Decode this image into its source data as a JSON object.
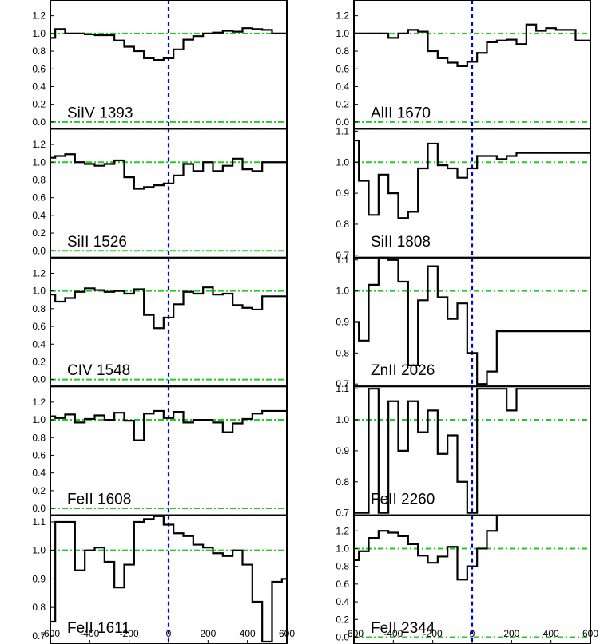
{
  "figure": {
    "background": "#ffffff",
    "colors": {
      "spectrum": "#000000",
      "continuum": "#22cc22",
      "systemic": "#0000dd"
    }
  },
  "chart_data": [
    {
      "type": "line",
      "label": "SiIV 1393",
      "column": 0,
      "row": 0,
      "xlim": [
        -600,
        600
      ],
      "ylim": [
        -0.05,
        1.35
      ],
      "yticks": [
        0.0,
        0.2,
        0.4,
        0.6,
        0.8,
        1.0,
        1.2
      ],
      "ytick_labels": [
        "0.0",
        "0.2",
        "0.4",
        "0.6",
        "0.8",
        "1.0",
        "1.2"
      ],
      "continuum": [
        1.0,
        0.0
      ],
      "zero_line": 0,
      "x": [
        -600,
        -550,
        -500,
        -450,
        -400,
        -350,
        -300,
        -250,
        -200,
        -150,
        -100,
        -50,
        0,
        50,
        100,
        150,
        200,
        250,
        300,
        350,
        400,
        450,
        500,
        550,
        600
      ],
      "y": [
        0.95,
        1.05,
        1.0,
        1.0,
        0.99,
        0.98,
        0.98,
        0.92,
        0.85,
        0.8,
        0.72,
        0.7,
        0.72,
        0.82,
        0.93,
        0.97,
        1.0,
        1.01,
        1.03,
        1.02,
        1.06,
        1.05,
        1.04,
        1.0,
        1.0
      ]
    },
    {
      "type": "line",
      "label": "SiII 1526",
      "column": 0,
      "row": 1,
      "xlim": [
        -600,
        600
      ],
      "ylim": [
        -0.05,
        1.35
      ],
      "yticks": [
        0.0,
        0.2,
        0.4,
        0.6,
        0.8,
        1.0,
        1.2
      ],
      "ytick_labels": [
        "0.0",
        "0.2",
        "0.4",
        "0.6",
        "0.8",
        "1.0",
        "1.2"
      ],
      "continuum": [
        1.0,
        0.0
      ],
      "zero_line": 0,
      "x": [
        -600,
        -550,
        -500,
        -450,
        -400,
        -350,
        -300,
        -250,
        -200,
        -150,
        -100,
        -50,
        0,
        50,
        100,
        150,
        200,
        250,
        300,
        350,
        400,
        450,
        500,
        550,
        600
      ],
      "y": [
        1.05,
        1.07,
        1.09,
        1.0,
        0.98,
        0.96,
        0.98,
        1.02,
        0.83,
        0.7,
        0.72,
        0.74,
        0.76,
        0.85,
        0.98,
        0.9,
        1.0,
        0.9,
        0.96,
        1.04,
        0.92,
        0.9,
        1.0,
        1.0,
        1.0
      ]
    },
    {
      "type": "line",
      "label": "CIV 1548",
      "column": 0,
      "row": 2,
      "xlim": [
        -600,
        600
      ],
      "ylim": [
        -0.05,
        1.35
      ],
      "yticks": [
        0.0,
        0.2,
        0.4,
        0.6,
        0.8,
        1.0,
        1.2
      ],
      "ytick_labels": [
        "0.0",
        "0.2",
        "0.4",
        "0.6",
        "0.8",
        "1.0",
        "1.2"
      ],
      "continuum": [
        1.0,
        0.0
      ],
      "zero_line": 0,
      "x": [
        -600,
        -550,
        -500,
        -450,
        -400,
        -350,
        -300,
        -250,
        -200,
        -150,
        -100,
        -50,
        0,
        50,
        100,
        150,
        200,
        250,
        300,
        350,
        400,
        450,
        500,
        550,
        600
      ],
      "y": [
        0.96,
        0.88,
        0.92,
        0.99,
        1.03,
        1.01,
        0.99,
        1.0,
        0.97,
        1.02,
        0.73,
        0.58,
        0.7,
        0.85,
        0.99,
        0.97,
        1.04,
        0.96,
        0.97,
        0.84,
        0.81,
        0.79,
        0.94,
        0.94,
        0.94
      ]
    },
    {
      "type": "line",
      "label": "FeII 1608",
      "column": 0,
      "row": 3,
      "xlim": [
        -600,
        600
      ],
      "ylim": [
        -0.05,
        1.35
      ],
      "yticks": [
        0.0,
        0.2,
        0.4,
        0.6,
        0.8,
        1.0,
        1.2
      ],
      "ytick_labels": [
        "0.0",
        "0.2",
        "0.4",
        "0.6",
        "0.8",
        "1.0",
        "1.2"
      ],
      "continuum": [
        1.0,
        0.0
      ],
      "zero_line": 0,
      "x": [
        -600,
        -550,
        -500,
        -450,
        -400,
        -350,
        -300,
        -250,
        -200,
        -150,
        -100,
        -50,
        0,
        50,
        100,
        150,
        200,
        250,
        300,
        350,
        400,
        450,
        500,
        550,
        600
      ],
      "y": [
        1.04,
        1.02,
        1.06,
        0.97,
        1.01,
        1.05,
        1.0,
        1.08,
        0.99,
        0.77,
        1.07,
        1.1,
        1.02,
        1.09,
        0.97,
        1.0,
        1.0,
        0.97,
        0.86,
        0.96,
        1.01,
        1.07,
        1.1,
        1.1,
        1.1
      ]
    },
    {
      "type": "line",
      "label": "FeII 1611",
      "column": 0,
      "row": 4,
      "xlim": [
        -600,
        600
      ],
      "ylim": [
        0.68,
        1.115
      ],
      "yticks": [
        0.7,
        0.8,
        0.9,
        1.0,
        1.1
      ],
      "ytick_labels": [
        "0.7",
        "0.8",
        "0.9",
        "1.0",
        "1.1"
      ],
      "continuum": [
        1.0
      ],
      "zero_line": null,
      "x": [
        -600,
        -550,
        -500,
        -450,
        -400,
        -350,
        -300,
        -250,
        -200,
        -150,
        -100,
        -50,
        0,
        50,
        100,
        150,
        200,
        250,
        300,
        350,
        400,
        450,
        500,
        550,
        600
      ],
      "y": [
        0.75,
        1.1,
        1.1,
        0.93,
        1.0,
        1.01,
        0.96,
        0.87,
        0.95,
        1.1,
        1.11,
        1.12,
        1.09,
        1.06,
        1.05,
        1.02,
        1.01,
        0.99,
        0.98,
        1.0,
        0.95,
        0.82,
        0.68,
        0.89,
        0.9
      ]
    },
    {
      "type": "line",
      "label": "AlII 1670",
      "column": 1,
      "row": 0,
      "xlim": [
        -600,
        600
      ],
      "ylim": [
        -0.05,
        1.35
      ],
      "yticks": [
        0.0,
        0.2,
        0.4,
        0.6,
        0.8,
        1.0,
        1.2
      ],
      "ytick_labels": [
        "0.0",
        "0.2",
        "0.4",
        "0.6",
        "0.8",
        "1.0",
        "1.2"
      ],
      "continuum": [
        1.0,
        0.0
      ],
      "zero_line": 0,
      "x": [
        -600,
        -550,
        -500,
        -450,
        -400,
        -350,
        -300,
        -250,
        -200,
        -150,
        -100,
        -50,
        0,
        50,
        100,
        150,
        200,
        250,
        300,
        350,
        400,
        450,
        500,
        550,
        600
      ],
      "y": [
        1.0,
        1.0,
        1.0,
        1.0,
        0.95,
        1.0,
        1.04,
        1.02,
        0.8,
        0.72,
        0.67,
        0.63,
        0.68,
        0.78,
        0.9,
        0.92,
        0.93,
        0.88,
        1.1,
        1.03,
        1.06,
        1.04,
        1.04,
        0.92,
        0.92
      ]
    },
    {
      "type": "line",
      "label": "SiII 1808",
      "column": 1,
      "row": 1,
      "xlim": [
        -600,
        600
      ],
      "ylim": [
        0.7,
        1.1
      ],
      "yticks": [
        0.7,
        0.8,
        0.9,
        1.0,
        1.1
      ],
      "ytick_labels": [
        "0.7",
        "0.8",
        "0.9",
        "1.0",
        "1.1"
      ],
      "continuum": [
        1.0
      ],
      "zero_line": null,
      "x": [
        -600,
        -550,
        -500,
        -450,
        -400,
        -350,
        -300,
        -250,
        -200,
        -150,
        -100,
        -50,
        0,
        50,
        100,
        150,
        200,
        250,
        300,
        350,
        400,
        450,
        500,
        550,
        600
      ],
      "y": [
        1.07,
        0.94,
        0.83,
        0.96,
        0.9,
        0.82,
        0.84,
        0.98,
        1.06,
        0.99,
        0.98,
        0.95,
        0.98,
        1.02,
        1.02,
        1.01,
        1.02,
        1.03,
        1.03,
        1.03,
        1.03,
        1.03,
        1.03,
        1.03,
        1.03
      ]
    },
    {
      "type": "line",
      "label": "ZnII 2026",
      "column": 1,
      "row": 2,
      "xlim": [
        -600,
        600
      ],
      "ylim": [
        0.7,
        1.1
      ],
      "yticks": [
        0.7,
        0.8,
        0.9,
        1.0,
        1.1
      ],
      "ytick_labels": [
        "0.7",
        "0.8",
        "0.9",
        "1.0",
        "1.1"
      ],
      "continuum": [
        1.0
      ],
      "zero_line": null,
      "x": [
        -600,
        -550,
        -500,
        -450,
        -400,
        -350,
        -300,
        -250,
        -200,
        -150,
        -100,
        -50,
        0,
        50,
        100,
        150,
        200,
        250,
        300,
        350,
        400,
        450,
        500,
        550,
        600
      ],
      "y": [
        0.9,
        0.84,
        1.02,
        1.12,
        1.1,
        1.03,
        0.76,
        0.97,
        1.08,
        0.98,
        0.91,
        0.96,
        0.8,
        0.7,
        0.74,
        0.87,
        0.87,
        0.87,
        0.87,
        0.87,
        0.87,
        0.87,
        0.87,
        0.87,
        0.87
      ]
    },
    {
      "type": "line",
      "label": "FeII 2260",
      "column": 1,
      "row": 3,
      "xlim": [
        -600,
        600
      ],
      "ylim": [
        0.7,
        1.1
      ],
      "yticks": [
        0.7,
        0.8,
        0.9,
        1.0,
        1.1
      ],
      "ytick_labels": [
        "0.7",
        "0.8",
        "0.9",
        "1.0",
        "1.1"
      ],
      "continuum": [
        1.0
      ],
      "zero_line": null,
      "x": [
        -600,
        -550,
        -500,
        -450,
        -400,
        -350,
        -300,
        -250,
        -200,
        -150,
        -100,
        -50,
        0,
        50,
        100,
        150,
        200,
        250,
        300,
        350,
        400,
        450,
        500,
        550,
        600
      ],
      "y": [
        0.7,
        0.7,
        1.1,
        0.7,
        1.06,
        0.9,
        1.06,
        0.96,
        1.03,
        0.89,
        0.95,
        0.8,
        0.7,
        1.1,
        1.1,
        1.1,
        1.03,
        1.1,
        1.1,
        1.1,
        1.1,
        1.1,
        1.1,
        1.1,
        1.1
      ]
    },
    {
      "type": "line",
      "label": "FeII 2344",
      "column": 1,
      "row": 4,
      "xlim": [
        -600,
        600
      ],
      "ylim": [
        -0.05,
        1.35
      ],
      "yticks": [
        0.0,
        0.2,
        0.4,
        0.6,
        0.8,
        1.0,
        1.2
      ],
      "ytick_labels": [
        "0.0",
        "0.2",
        "0.4",
        "0.6",
        "0.8",
        "1.0",
        "1.2"
      ],
      "continuum": [
        1.0,
        0.0
      ],
      "zero_line": 0,
      "x": [
        -600,
        -550,
        -500,
        -450,
        -400,
        -350,
        -300,
        -250,
        -200,
        -150,
        -100,
        -50,
        0,
        50,
        100,
        150,
        200,
        250,
        300,
        350,
        400,
        450,
        500,
        550,
        600
      ],
      "y": [
        0.87,
        0.97,
        1.12,
        1.2,
        1.18,
        1.14,
        1.05,
        0.92,
        0.84,
        0.91,
        1.02,
        0.65,
        0.8,
        1.0,
        1.2,
        1.42,
        1.42,
        1.42,
        1.42,
        1.42,
        1.42,
        1.42,
        1.42,
        1.42,
        1.42
      ]
    }
  ],
  "xaxis": {
    "ticks": [
      -600,
      -400,
      -200,
      0,
      200,
      400,
      600
    ],
    "left_labels": [
      "-600",
      "-400",
      "-200",
      "0",
      "200",
      "400",
      "600"
    ],
    "right_labels": [
      "-600",
      "-400",
      "-200",
      "0",
      "200",
      "400",
      "600"
    ]
  }
}
